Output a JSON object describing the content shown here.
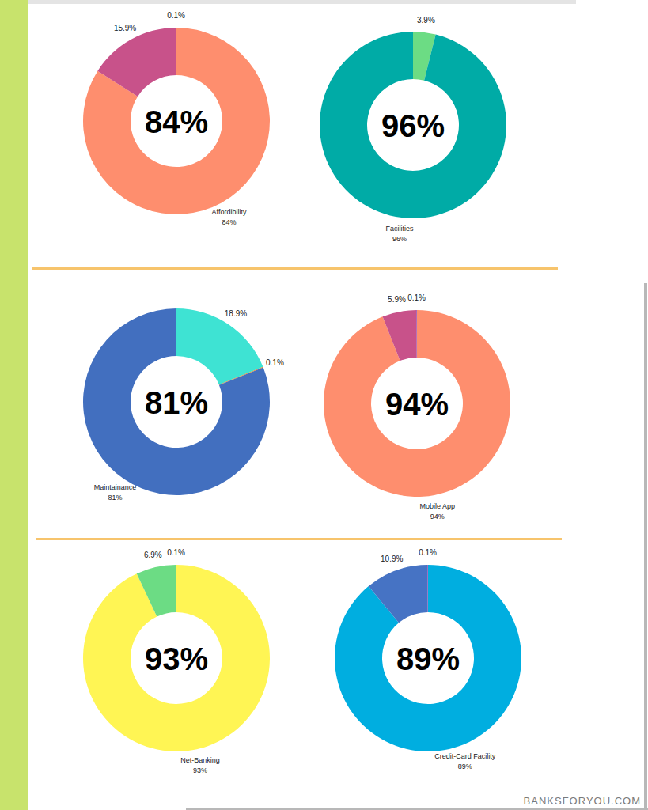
{
  "chart_data": [
    {
      "type": "donut",
      "categories": [
        "Affordibility",
        null,
        null
      ],
      "values": [
        84,
        15.9,
        0.1
      ],
      "value_labels": [
        "84%",
        "15.9%",
        "0.1%"
      ],
      "colors": [
        "#fe8e6e",
        "#c8528a",
        "#8e44ad"
      ],
      "data_labels": true
    },
    {
      "type": "donut",
      "categories": [
        null,
        "Facilities"
      ],
      "values": [
        3.9,
        96
      ],
      "value_labels": [
        "3.9%",
        "96%"
      ],
      "colors": [
        "#6cdc84",
        "#00aba6"
      ],
      "data_labels": true
    },
    {
      "type": "donut",
      "categories": [
        null,
        null,
        "Maintainance"
      ],
      "values": [
        18.9,
        0.1,
        81
      ],
      "value_labels": [
        "18.9%",
        "0.1%",
        "81%"
      ],
      "colors": [
        "#3ee3d3",
        "#ff7f0e",
        "#426fbf"
      ],
      "data_labels": true
    },
    {
      "type": "donut",
      "categories": [
        "Mobile App",
        null,
        null
      ],
      "values": [
        94,
        5.9,
        0.1
      ],
      "value_labels": [
        "94%",
        "5.9%",
        "0.1%"
      ],
      "colors": [
        "#fe8e6e",
        "#c8528a",
        "#8e44ad"
      ],
      "data_labels": true
    },
    {
      "type": "donut",
      "categories": [
        "Net-Banking",
        null,
        null
      ],
      "values": [
        93,
        6.9,
        0.1
      ],
      "value_labels": [
        "93%",
        "6.9%",
        "0.1%"
      ],
      "colors": [
        "#fff554",
        "#6cdc84",
        "#8e44ad"
      ],
      "data_labels": true
    },
    {
      "type": "donut",
      "categories": [
        "Credit-Card Facility",
        null,
        null
      ],
      "values": [
        89,
        10.9,
        0.1
      ],
      "value_labels": [
        "89%",
        "10.9%",
        "0.1%"
      ],
      "colors": [
        "#00aee0",
        "#4673c4",
        "#8e44ad"
      ],
      "data_labels": true
    }
  ],
  "footer": "BANKSFORYOU.COM"
}
